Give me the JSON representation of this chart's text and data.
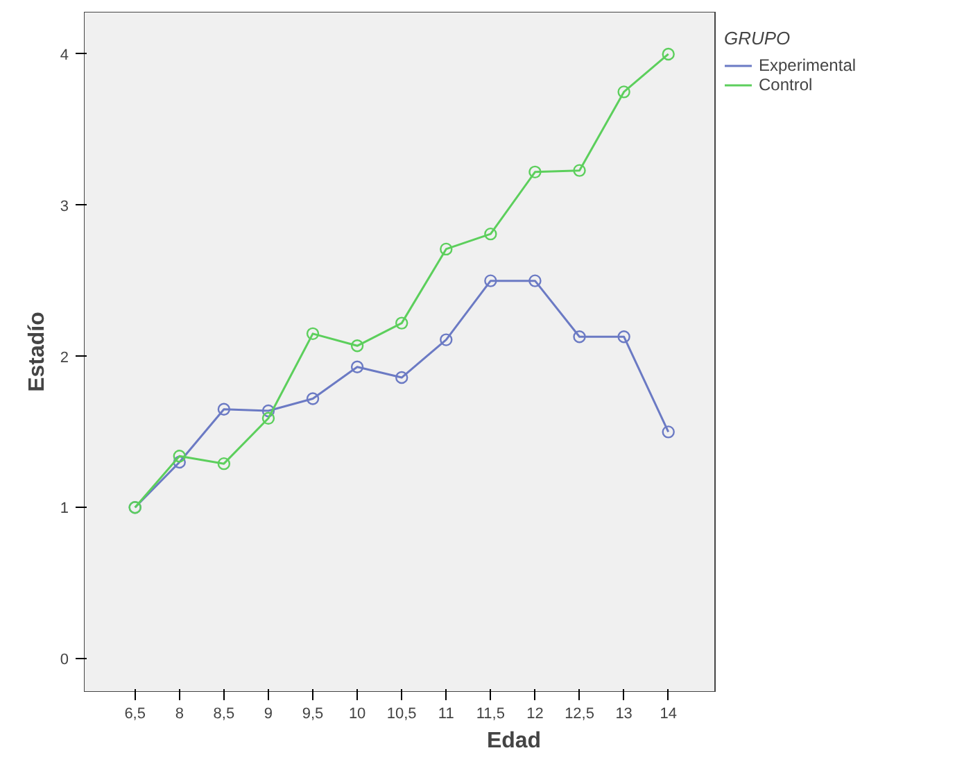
{
  "chart_data": {
    "type": "line",
    "xlabel": "Edad",
    "ylabel": "Estadío",
    "legend_title": "GRUPO",
    "legend": "top right",
    "marker": "circle",
    "line_style": "solid",
    "grid": false,
    "categories": [
      "6,5",
      "8",
      "8,5",
      "9",
      "9,5",
      "10",
      "10,5",
      "11",
      "11,5",
      "12",
      "12,5",
      "13",
      "14"
    ],
    "ylim": [
      -0.22,
      4.28
    ],
    "yticks": [
      0,
      1,
      2,
      3,
      4
    ],
    "series": [
      {
        "name": "Experimental",
        "color": "#6b7ac4",
        "values": [
          1.0,
          1.3,
          1.65,
          1.64,
          1.72,
          1.93,
          1.86,
          2.11,
          2.5,
          2.5,
          2.13,
          2.13,
          1.5
        ]
      },
      {
        "name": "Control",
        "color": "#5ccf5c",
        "values": [
          1.0,
          1.34,
          1.29,
          1.59,
          2.15,
          2.07,
          2.22,
          2.71,
          2.81,
          3.22,
          3.23,
          3.75,
          4.0
        ]
      }
    ]
  }
}
